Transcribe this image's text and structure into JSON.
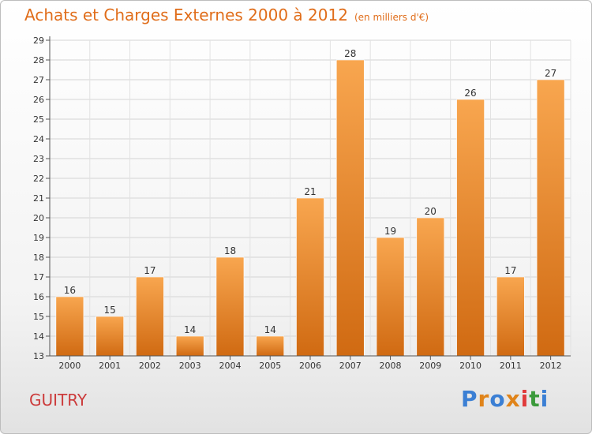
{
  "title": "Achats et Charges Externes 2000 à 2012",
  "subtitle": "(en milliers d'€)",
  "city": "GUITRY",
  "logo": {
    "text": "Proxiti",
    "letter_colors": [
      "#3b7fd4",
      "#e0841a",
      "#3b7fd4",
      "#e0841a",
      "#e03b3b",
      "#3b9a3b",
      "#3b7fd4"
    ]
  },
  "colors": {
    "title": "#e06d1a",
    "city": "#cc3b3b",
    "bar_light": "#f8a64f",
    "bar_dark": "#d06a12"
  },
  "chart_data": {
    "type": "bar",
    "title": "Achats et Charges Externes 2000 à 2012",
    "subtitle": "(en milliers d'€)",
    "categories": [
      "2000",
      "2001",
      "2002",
      "2003",
      "2004",
      "2005",
      "2006",
      "2007",
      "2008",
      "2009",
      "2010",
      "2011",
      "2012"
    ],
    "values": [
      16,
      15,
      17,
      14,
      18,
      14,
      21,
      28,
      19,
      20,
      26,
      17,
      27
    ],
    "ylim": [
      13,
      29
    ],
    "yticks": [
      "13",
      "14",
      "15",
      "16",
      "17",
      "18",
      "19",
      "20",
      "21",
      "22",
      "23",
      "24",
      "25",
      "26",
      "27",
      "28",
      "29"
    ],
    "grid": true,
    "data_labels": true
  }
}
